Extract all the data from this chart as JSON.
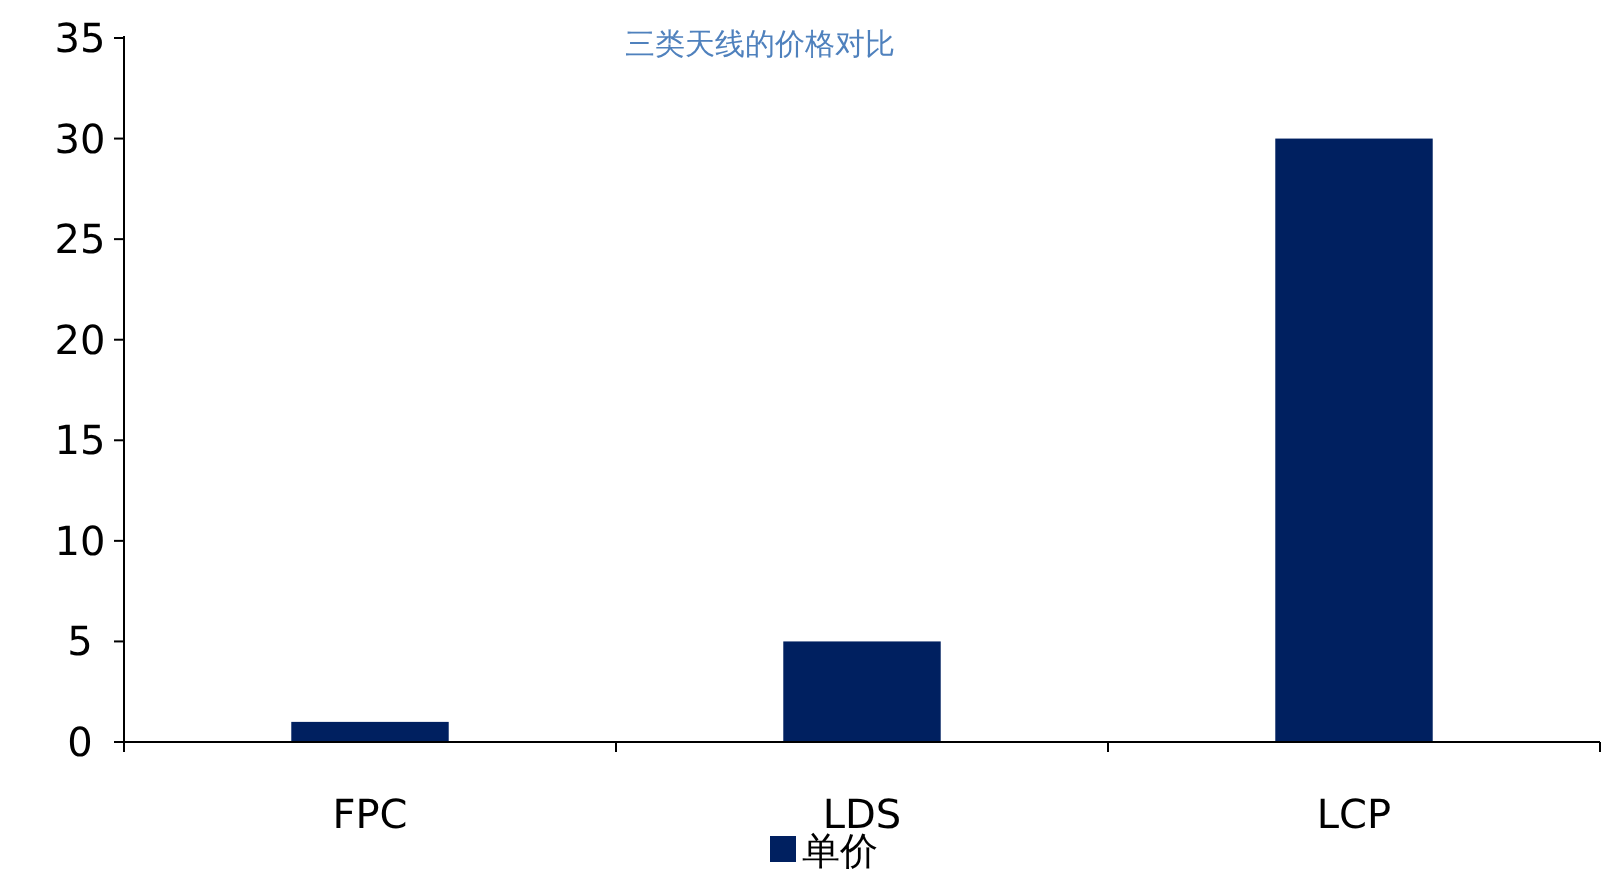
{
  "chart_data": {
    "type": "bar",
    "title": "三类天线的价格对比",
    "categories": [
      "FPC",
      "LDS",
      "LCP"
    ],
    "series": [
      {
        "name": "单价",
        "color": "#002060",
        "values": [
          1,
          5,
          30
        ]
      }
    ],
    "ylim": [
      0,
      35
    ],
    "yticks": [
      0,
      5,
      10,
      15,
      20,
      25,
      30,
      35
    ],
    "grid": false,
    "legend": "bottom"
  }
}
